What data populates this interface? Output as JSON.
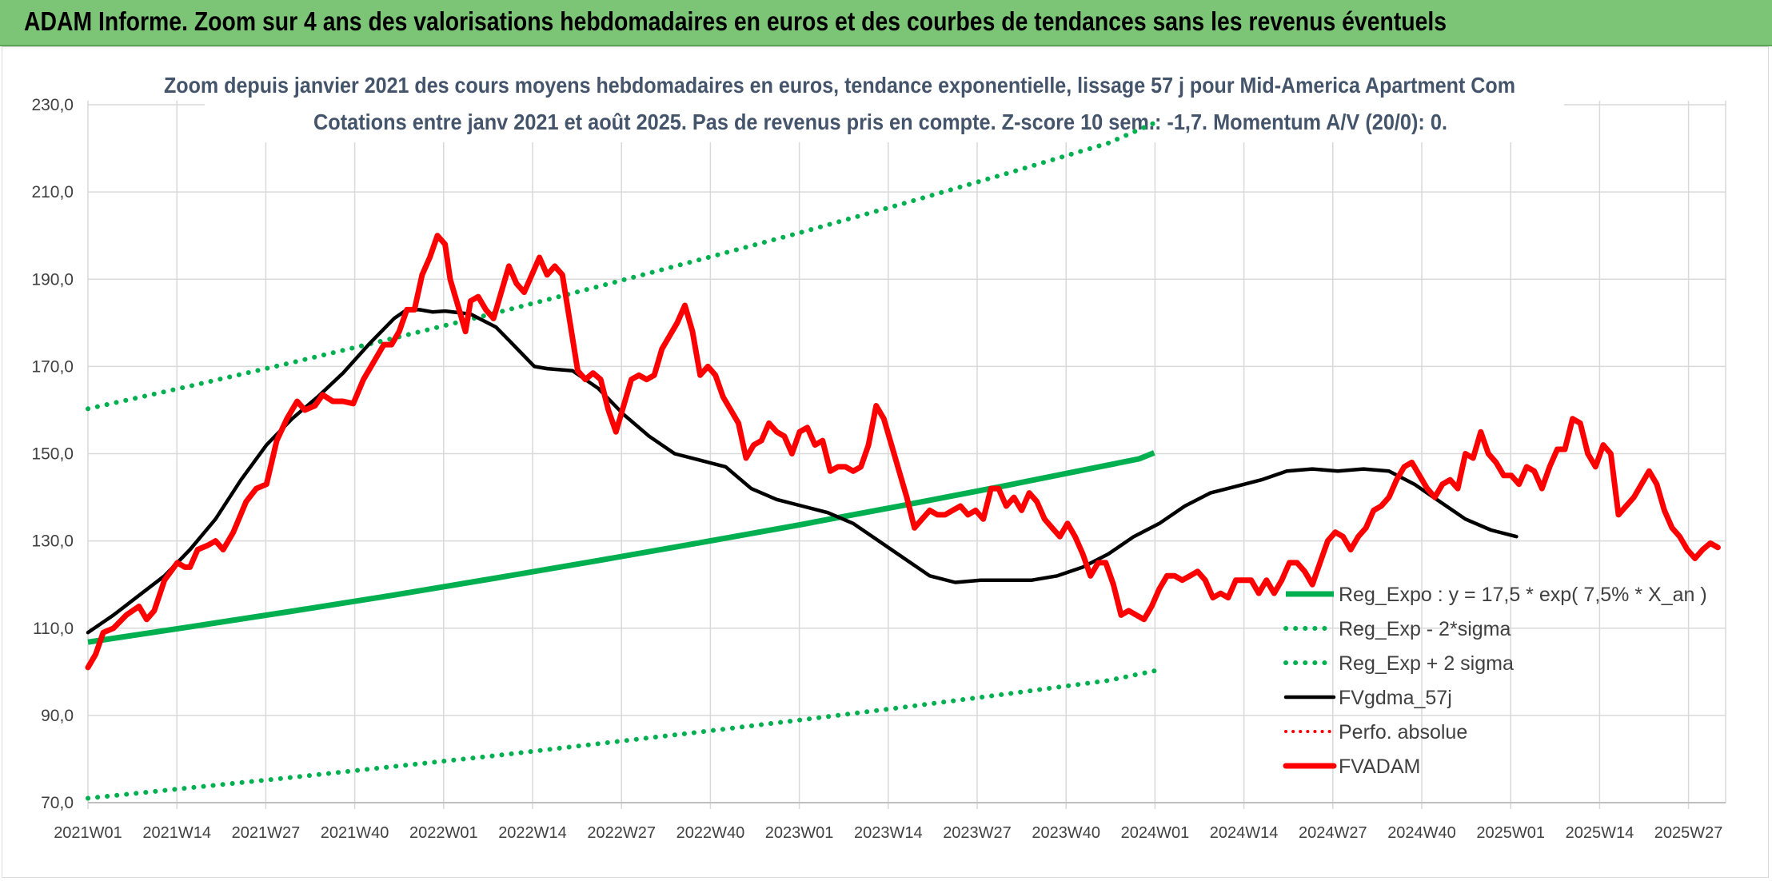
{
  "header": {
    "title": "ADAM Informe. Zoom sur 4 ans des valorisations hebdomadaires en euros et des courbes de tendances sans les revenus éventuels"
  },
  "colors": {
    "banner": "#7cc576",
    "trend": "#00b050",
    "band": "#00b050",
    "smoothed": "#000000",
    "price": "#ff0000",
    "perfo": "#ff0000",
    "grid": "#d9d9d9"
  },
  "chart_data": {
    "type": "line",
    "title": "Zoom depuis janvier 2021 des cours moyens hebdomadaires en euros, tendance exponentielle, lissage 57 j pour Mid-America Apartment Com",
    "subtitle": "Cotations entre janv 2021 et août 2025. Pas de revenus pris en compte. Z-score 10 sem.: -1,7. Momentum A/V (20/0): 0.",
    "xlabel": "",
    "ylabel": "",
    "ylim": [
      70,
      230
    ],
    "y_ticks": [
      "70,0",
      "90,0",
      "110,0",
      "130,0",
      "150,0",
      "170,0",
      "190,0",
      "210,0",
      "230,0"
    ],
    "x_tick_labels": [
      "2021W01",
      "2021W14",
      "2021W27",
      "2021W40",
      "2022W01",
      "2022W14",
      "2022W27",
      "2022W40",
      "2023W01",
      "2023W14",
      "2023W27",
      "2023W40",
      "2024W01",
      "2024W14",
      "2024W27",
      "2024W40",
      "2025W01",
      "2025W14",
      "2025W27"
    ],
    "grid": true,
    "legend_position": "bottom-right",
    "series": [
      {
        "name": "Reg_Expo : y = 17,5 * exp( 7,5% *  X_an )",
        "style": "solid-green",
        "values": [
          [
            0,
            106.8
          ],
          [
            40,
            110.3
          ],
          [
            80,
            113.9
          ],
          [
            120,
            117.6
          ],
          [
            160,
            121.5
          ],
          [
            200,
            125.5
          ],
          [
            240,
            129.6
          ],
          [
            280,
            133.8
          ],
          [
            320,
            138.2
          ],
          [
            360,
            142.7
          ],
          [
            400,
            147.4
          ],
          [
            412,
            148.8
          ],
          [
            418,
            150.2
          ]
        ]
      },
      {
        "name": "Reg_Exp - 2*sigma",
        "style": "dotted-green",
        "values": [
          [
            0,
            71.0
          ],
          [
            40,
            73.4
          ],
          [
            80,
            75.8
          ],
          [
            120,
            78.3
          ],
          [
            160,
            80.8
          ],
          [
            200,
            83.5
          ],
          [
            240,
            86.2
          ],
          [
            280,
            89.0
          ],
          [
            320,
            91.9
          ],
          [
            360,
            94.9
          ],
          [
            400,
            98.0
          ],
          [
            418,
            100.2
          ]
        ]
      },
      {
        "name": "Reg_Exp + 2 sigma",
        "style": "dotted-green",
        "values": [
          [
            0,
            160.3
          ],
          [
            40,
            165.5
          ],
          [
            80,
            170.9
          ],
          [
            120,
            176.5
          ],
          [
            160,
            182.3
          ],
          [
            200,
            188.3
          ],
          [
            240,
            194.5
          ],
          [
            280,
            200.8
          ],
          [
            320,
            207.4
          ],
          [
            360,
            214.2
          ],
          [
            400,
            221.2
          ],
          [
            418,
            225.8
          ]
        ]
      },
      {
        "name": "FVgdma_57j",
        "style": "solid-black",
        "values": [
          [
            0,
            109
          ],
          [
            10,
            113
          ],
          [
            20,
            117.5
          ],
          [
            30,
            122
          ],
          [
            40,
            128
          ],
          [
            50,
            135
          ],
          [
            60,
            144
          ],
          [
            70,
            152
          ],
          [
            80,
            158
          ],
          [
            90,
            163
          ],
          [
            100,
            168.5
          ],
          [
            110,
            175
          ],
          [
            120,
            181
          ],
          [
            125,
            183
          ],
          [
            130,
            183
          ],
          [
            135,
            182.5
          ],
          [
            140,
            182.7
          ],
          [
            150,
            182
          ],
          [
            160,
            179
          ],
          [
            165,
            176
          ],
          [
            170,
            173
          ],
          [
            175,
            170
          ],
          [
            180,
            169.5
          ],
          [
            190,
            169
          ],
          [
            200,
            165
          ],
          [
            210,
            159
          ],
          [
            220,
            154
          ],
          [
            230,
            150
          ],
          [
            240,
            148.5
          ],
          [
            250,
            147
          ],
          [
            260,
            142
          ],
          [
            270,
            139.5
          ],
          [
            280,
            138
          ],
          [
            290,
            136.5
          ],
          [
            300,
            134
          ],
          [
            310,
            130
          ],
          [
            320,
            126
          ],
          [
            330,
            122
          ],
          [
            340,
            120.5
          ],
          [
            350,
            121
          ],
          [
            360,
            121
          ],
          [
            370,
            121
          ],
          [
            380,
            122
          ],
          [
            390,
            124
          ],
          [
            400,
            127
          ],
          [
            410,
            131
          ],
          [
            420,
            134
          ],
          [
            430,
            138
          ],
          [
            440,
            141
          ],
          [
            450,
            142.5
          ],
          [
            460,
            144
          ],
          [
            470,
            146
          ],
          [
            480,
            146.5
          ],
          [
            490,
            146
          ],
          [
            500,
            146.5
          ],
          [
            510,
            146
          ],
          [
            520,
            143
          ],
          [
            530,
            139
          ],
          [
            540,
            135
          ],
          [
            550,
            132.5
          ],
          [
            560,
            131
          ]
        ]
      },
      {
        "name": "Perfo. absolue",
        "style": "dotted-red",
        "values": []
      },
      {
        "name": "FVADAM",
        "style": "solid-red",
        "values": [
          [
            0,
            101
          ],
          [
            3,
            104
          ],
          [
            6,
            109
          ],
          [
            10,
            110
          ],
          [
            15,
            113
          ],
          [
            20,
            115
          ],
          [
            23,
            112
          ],
          [
            26,
            114
          ],
          [
            30,
            121
          ],
          [
            35,
            125
          ],
          [
            38,
            124
          ],
          [
            40,
            124
          ],
          [
            43,
            128
          ],
          [
            47,
            129
          ],
          [
            50,
            130
          ],
          [
            53,
            128
          ],
          [
            57,
            132
          ],
          [
            62,
            139
          ],
          [
            66,
            142
          ],
          [
            70,
            143
          ],
          [
            74,
            153
          ],
          [
            78,
            158
          ],
          [
            82,
            162
          ],
          [
            85,
            160
          ],
          [
            89,
            161
          ],
          [
            92,
            163.5
          ],
          [
            96,
            162
          ],
          [
            100,
            162
          ],
          [
            104,
            161.5
          ],
          [
            108,
            167
          ],
          [
            112,
            171
          ],
          [
            116,
            175
          ],
          [
            119,
            175
          ],
          [
            122,
            178
          ],
          [
            125,
            183
          ],
          [
            128,
            183
          ],
          [
            131,
            191
          ],
          [
            134,
            195
          ],
          [
            137,
            200
          ],
          [
            140,
            198
          ],
          [
            142,
            190
          ],
          [
            145,
            184
          ],
          [
            148,
            178
          ],
          [
            150,
            185
          ],
          [
            153,
            186
          ],
          [
            156,
            183
          ],
          [
            159,
            181
          ],
          [
            162,
            187
          ],
          [
            165,
            193
          ],
          [
            168,
            189
          ],
          [
            171,
            187
          ],
          [
            174,
            191
          ],
          [
            177,
            195
          ],
          [
            180,
            191
          ],
          [
            183,
            193
          ],
          [
            186,
            191
          ],
          [
            189,
            180
          ],
          [
            192,
            169
          ],
          [
            195,
            167
          ],
          [
            198,
            168.5
          ],
          [
            201,
            167
          ],
          [
            204,
            160
          ],
          [
            207,
            155
          ],
          [
            210,
            161
          ],
          [
            213,
            167
          ],
          [
            216,
            168
          ],
          [
            219,
            167
          ],
          [
            222,
            168
          ],
          [
            225,
            174
          ],
          [
            228,
            177
          ],
          [
            231,
            180
          ],
          [
            234,
            184
          ],
          [
            237,
            178
          ],
          [
            240,
            168
          ],
          [
            243,
            170
          ],
          [
            246,
            168
          ],
          [
            249,
            163
          ],
          [
            252,
            160
          ],
          [
            255,
            157
          ],
          [
            258,
            149
          ],
          [
            261,
            152
          ],
          [
            264,
            153
          ],
          [
            267,
            157
          ],
          [
            270,
            155
          ],
          [
            273,
            154
          ],
          [
            276,
            150
          ],
          [
            279,
            155
          ],
          [
            282,
            156
          ],
          [
            285,
            152
          ],
          [
            288,
            153
          ],
          [
            291,
            146
          ],
          [
            294,
            147
          ],
          [
            297,
            147
          ],
          [
            300,
            146
          ],
          [
            303,
            147
          ],
          [
            306,
            152
          ],
          [
            309,
            161
          ],
          [
            312,
            158
          ],
          [
            315,
            152
          ],
          [
            318,
            146
          ],
          [
            321,
            140
          ],
          [
            324,
            133
          ],
          [
            327,
            135
          ],
          [
            330,
            137
          ],
          [
            333,
            136
          ],
          [
            336,
            136
          ],
          [
            339,
            137
          ],
          [
            342,
            138
          ],
          [
            345,
            136
          ],
          [
            348,
            137
          ],
          [
            351,
            135
          ],
          [
            354,
            142
          ],
          [
            357,
            142
          ],
          [
            360,
            138
          ],
          [
            363,
            140
          ],
          [
            366,
            137
          ],
          [
            369,
            141
          ],
          [
            372,
            139
          ],
          [
            375,
            135
          ],
          [
            378,
            133
          ],
          [
            381,
            131
          ],
          [
            384,
            134
          ],
          [
            387,
            131
          ],
          [
            390,
            127
          ],
          [
            393,
            122
          ],
          [
            396,
            125
          ],
          [
            399,
            125
          ],
          [
            402,
            120
          ],
          [
            405,
            113
          ],
          [
            408,
            114
          ],
          [
            411,
            113
          ],
          [
            414,
            112
          ],
          [
            417,
            115
          ],
          [
            420,
            119
          ],
          [
            423,
            122
          ],
          [
            426,
            122
          ],
          [
            429,
            121
          ],
          [
            432,
            122
          ],
          [
            435,
            123
          ],
          [
            438,
            121
          ],
          [
            441,
            117
          ],
          [
            444,
            118
          ],
          [
            447,
            117
          ],
          [
            450,
            121
          ],
          [
            453,
            121
          ],
          [
            456,
            121
          ],
          [
            459,
            118
          ],
          [
            462,
            121
          ],
          [
            465,
            118
          ],
          [
            468,
            121
          ],
          [
            471,
            125
          ],
          [
            474,
            125
          ],
          [
            477,
            123
          ],
          [
            480,
            120
          ],
          [
            483,
            125
          ],
          [
            486,
            130
          ],
          [
            489,
            132
          ],
          [
            492,
            131
          ],
          [
            495,
            128
          ],
          [
            498,
            131
          ],
          [
            501,
            133
          ],
          [
            504,
            137
          ],
          [
            507,
            138
          ],
          [
            510,
            140
          ],
          [
            513,
            144
          ],
          [
            516,
            147
          ],
          [
            519,
            148
          ],
          [
            522,
            145
          ],
          [
            525,
            142
          ],
          [
            528,
            140
          ],
          [
            531,
            143
          ],
          [
            534,
            144
          ],
          [
            537,
            142
          ],
          [
            540,
            150
          ],
          [
            543,
            149
          ],
          [
            546,
            155
          ],
          [
            549,
            150
          ],
          [
            552,
            148
          ],
          [
            555,
            145
          ],
          [
            558,
            145
          ],
          [
            561,
            143
          ],
          [
            564,
            147
          ],
          [
            567,
            146
          ],
          [
            570,
            142
          ],
          [
            573,
            147
          ],
          [
            576,
            151
          ],
          [
            579,
            151
          ],
          [
            582,
            158
          ],
          [
            585,
            157
          ],
          [
            588,
            150
          ],
          [
            591,
            147
          ],
          [
            594,
            152
          ],
          [
            597,
            150
          ],
          [
            600,
            136
          ],
          [
            603,
            138
          ],
          [
            606,
            140
          ],
          [
            609,
            143
          ],
          [
            612,
            146
          ],
          [
            615,
            143
          ],
          [
            618,
            137
          ],
          [
            621,
            133
          ],
          [
            624,
            131
          ],
          [
            627,
            128
          ],
          [
            630,
            126
          ],
          [
            633,
            128
          ],
          [
            636,
            129.5
          ],
          [
            639,
            128.5
          ]
        ]
      }
    ]
  }
}
